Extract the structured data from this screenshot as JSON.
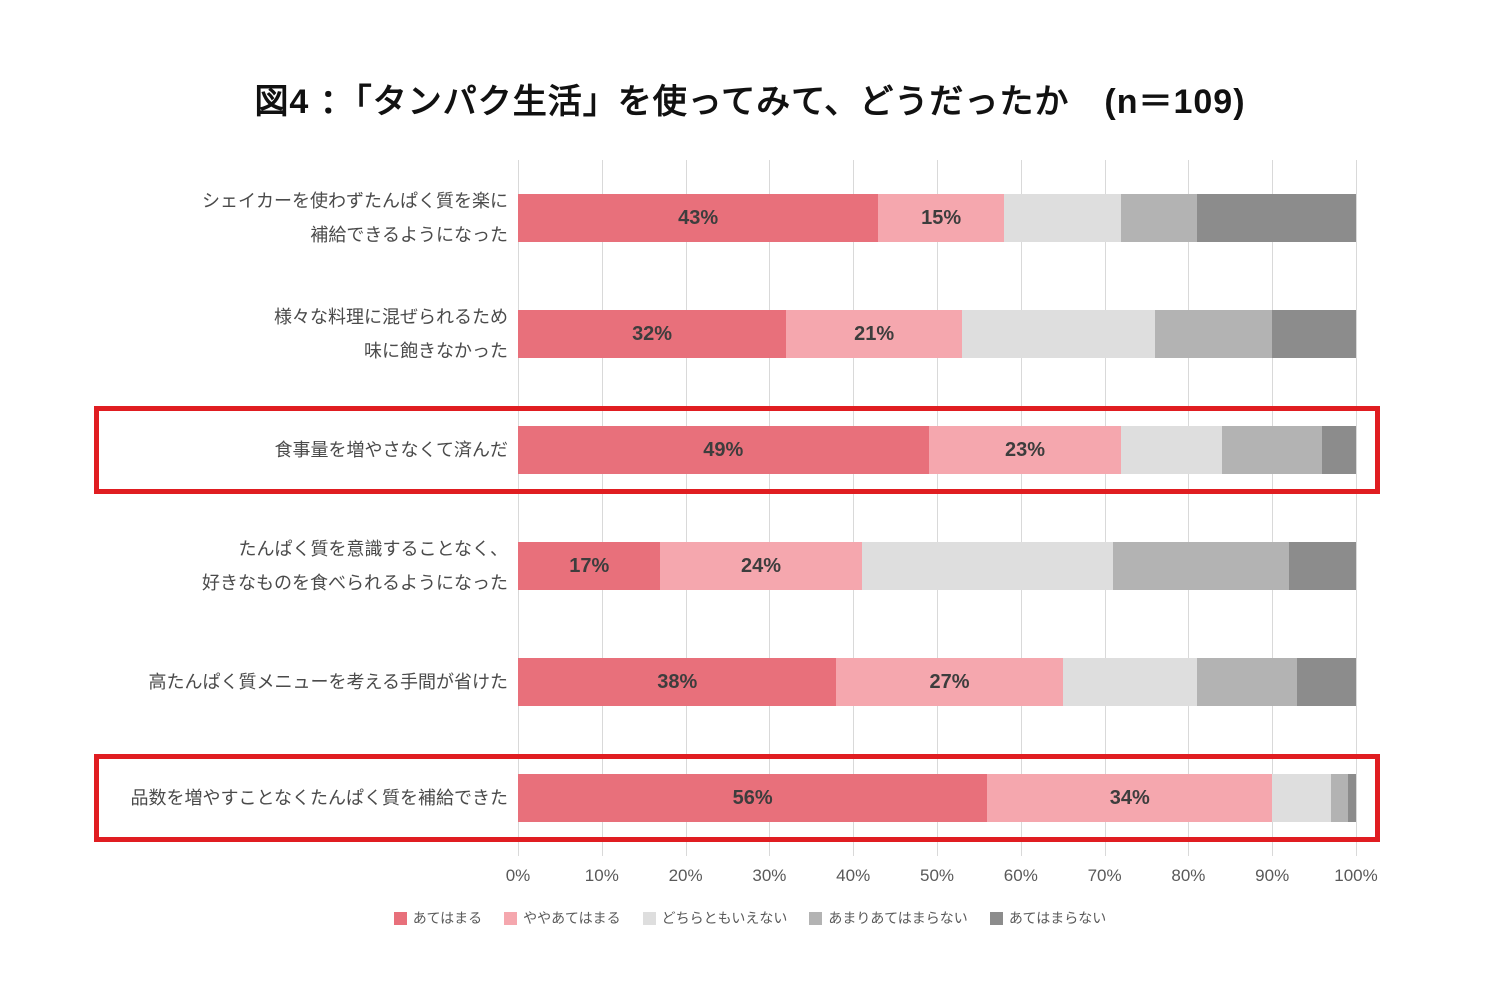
{
  "title": "図4 ：「タンパク生活」を使ってみて、どうだったか　(n＝109)",
  "chart_data": {
    "type": "bar",
    "orientation": "horizontal",
    "stacked": true,
    "title": "図4 ：「タンパク生活」を使ってみて、どうだったか　(n＝109)",
    "categories": [
      {
        "lines": [
          "シェイカーを使わずたんぱく質を楽に",
          "補給できるようになった"
        ]
      },
      {
        "lines": [
          "様々な料理に混ぜられるため",
          "味に飽きなかった"
        ]
      },
      {
        "lines": [
          "食事量を増やさなくて済んだ"
        ]
      },
      {
        "lines": [
          "たんぱく質を意識することなく、",
          "好きなものを食べられるようになった"
        ]
      },
      {
        "lines": [
          "高たんぱく質メニューを考える手間が省けた"
        ]
      },
      {
        "lines": [
          "品数を増やすことなくたんぱく質を補給できた"
        ]
      }
    ],
    "series": [
      {
        "name": "あてはまる",
        "color": "#e8707b",
        "values": [
          43,
          32,
          49,
          17,
          38,
          56
        ],
        "values_labeled": true
      },
      {
        "name": "ややあてはまる",
        "color": "#f5a7ae",
        "values": [
          15,
          21,
          23,
          24,
          27,
          34
        ],
        "values_labeled": true
      },
      {
        "name": "どちらともいえない",
        "color": "#dedede",
        "values": [
          14,
          23,
          12,
          30,
          16,
          7
        ],
        "values_labeled": false
      },
      {
        "name": "あまりあてはまらない",
        "color": "#b3b3b3",
        "values": [
          9,
          14,
          12,
          21,
          12,
          2
        ],
        "values_labeled": false
      },
      {
        "name": "あてはまらない",
        "color": "#8c8c8c",
        "values": [
          19,
          10,
          4,
          8,
          7,
          1
        ],
        "values_labeled": false
      }
    ],
    "x_ticks": [
      "0%",
      "10%",
      "20%",
      "30%",
      "40%",
      "50%",
      "60%",
      "70%",
      "80%",
      "90%",
      "100%"
    ],
    "xlim": [
      0,
      100
    ],
    "gridlines": true,
    "legend_position": "bottom",
    "highlighted_rows": [
      2,
      5
    ],
    "highlight_color": "#e01d21",
    "value_label_suffix": "%"
  }
}
